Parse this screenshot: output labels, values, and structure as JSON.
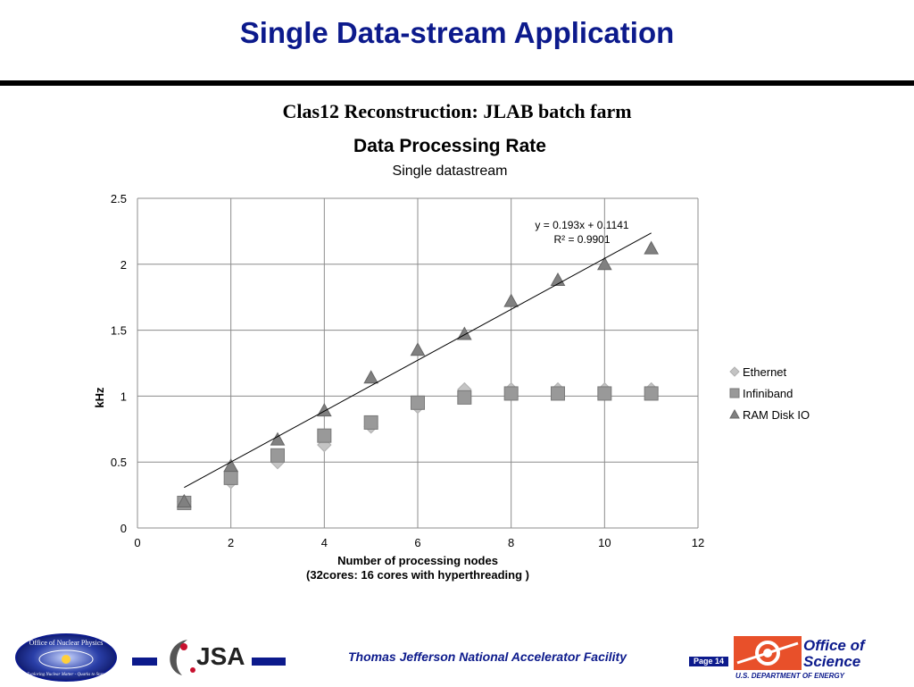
{
  "slide": {
    "title": "Single Data-stream Application",
    "subtitle": "Clas12 Reconstruction: JLAB batch farm"
  },
  "footer": {
    "text": "Thomas Jefferson National Accelerator Facility",
    "page": "Page 14",
    "logo_left_text": "Office of Nuclear Physics",
    "logo_left_tagline": "Exploring Nuclear Matter - Quarks to Stars",
    "logo_mid_text": "JSA",
    "logo_right_line1": "Office of",
    "logo_right_line2": "Science",
    "logo_right_sub": "U.S. DEPARTMENT OF ENERGY"
  },
  "colors": {
    "brand_blue": "#0c1a8c",
    "ethernet": "#c4c4c4",
    "infiniband": "#999999",
    "ramdisk": "#808080"
  },
  "chart_data": {
    "type": "scatter",
    "title": "Data Processing Rate",
    "subtitle": "Single datastream",
    "xlabel": "Number of processing nodes",
    "xlabel2": "(32cores: 16 cores with hyperthreading )",
    "ylabel": "kHz",
    "xlim": [
      0,
      12
    ],
    "ylim": [
      0,
      2.5
    ],
    "xticks": [
      0,
      2,
      4,
      6,
      8,
      10,
      12
    ],
    "yticks": [
      0,
      0.5,
      1,
      1.5,
      2,
      2.5
    ],
    "grid": true,
    "legend_position": "right",
    "series": [
      {
        "name": "Ethernet",
        "marker": "diamond",
        "x": [
          1,
          2,
          3,
          4,
          5,
          6,
          7,
          8,
          9,
          10,
          11
        ],
        "y": [
          0.2,
          0.35,
          0.5,
          0.63,
          0.77,
          0.92,
          1.05,
          1.05,
          1.05,
          1.05,
          1.05
        ]
      },
      {
        "name": "Infiniband",
        "marker": "square",
        "x": [
          1,
          2,
          3,
          4,
          5,
          6,
          7,
          8,
          9,
          10,
          11
        ],
        "y": [
          0.19,
          0.38,
          0.55,
          0.7,
          0.8,
          0.95,
          0.99,
          1.02,
          1.02,
          1.02,
          1.02
        ]
      },
      {
        "name": "RAM Disk IO",
        "marker": "triangle",
        "x": [
          1,
          2,
          3,
          4,
          5,
          6,
          7,
          8,
          9,
          10,
          11
        ],
        "y": [
          0.2,
          0.47,
          0.67,
          0.89,
          1.14,
          1.35,
          1.47,
          1.72,
          1.88,
          2.0,
          2.12
        ]
      }
    ],
    "trendline": {
      "series": "RAM Disk IO",
      "slope": 0.193,
      "intercept": 0.1141,
      "x_range": [
        1,
        11
      ],
      "equation": "y = 0.193x + 0.1141",
      "r2": "R² = 0.9901"
    }
  }
}
